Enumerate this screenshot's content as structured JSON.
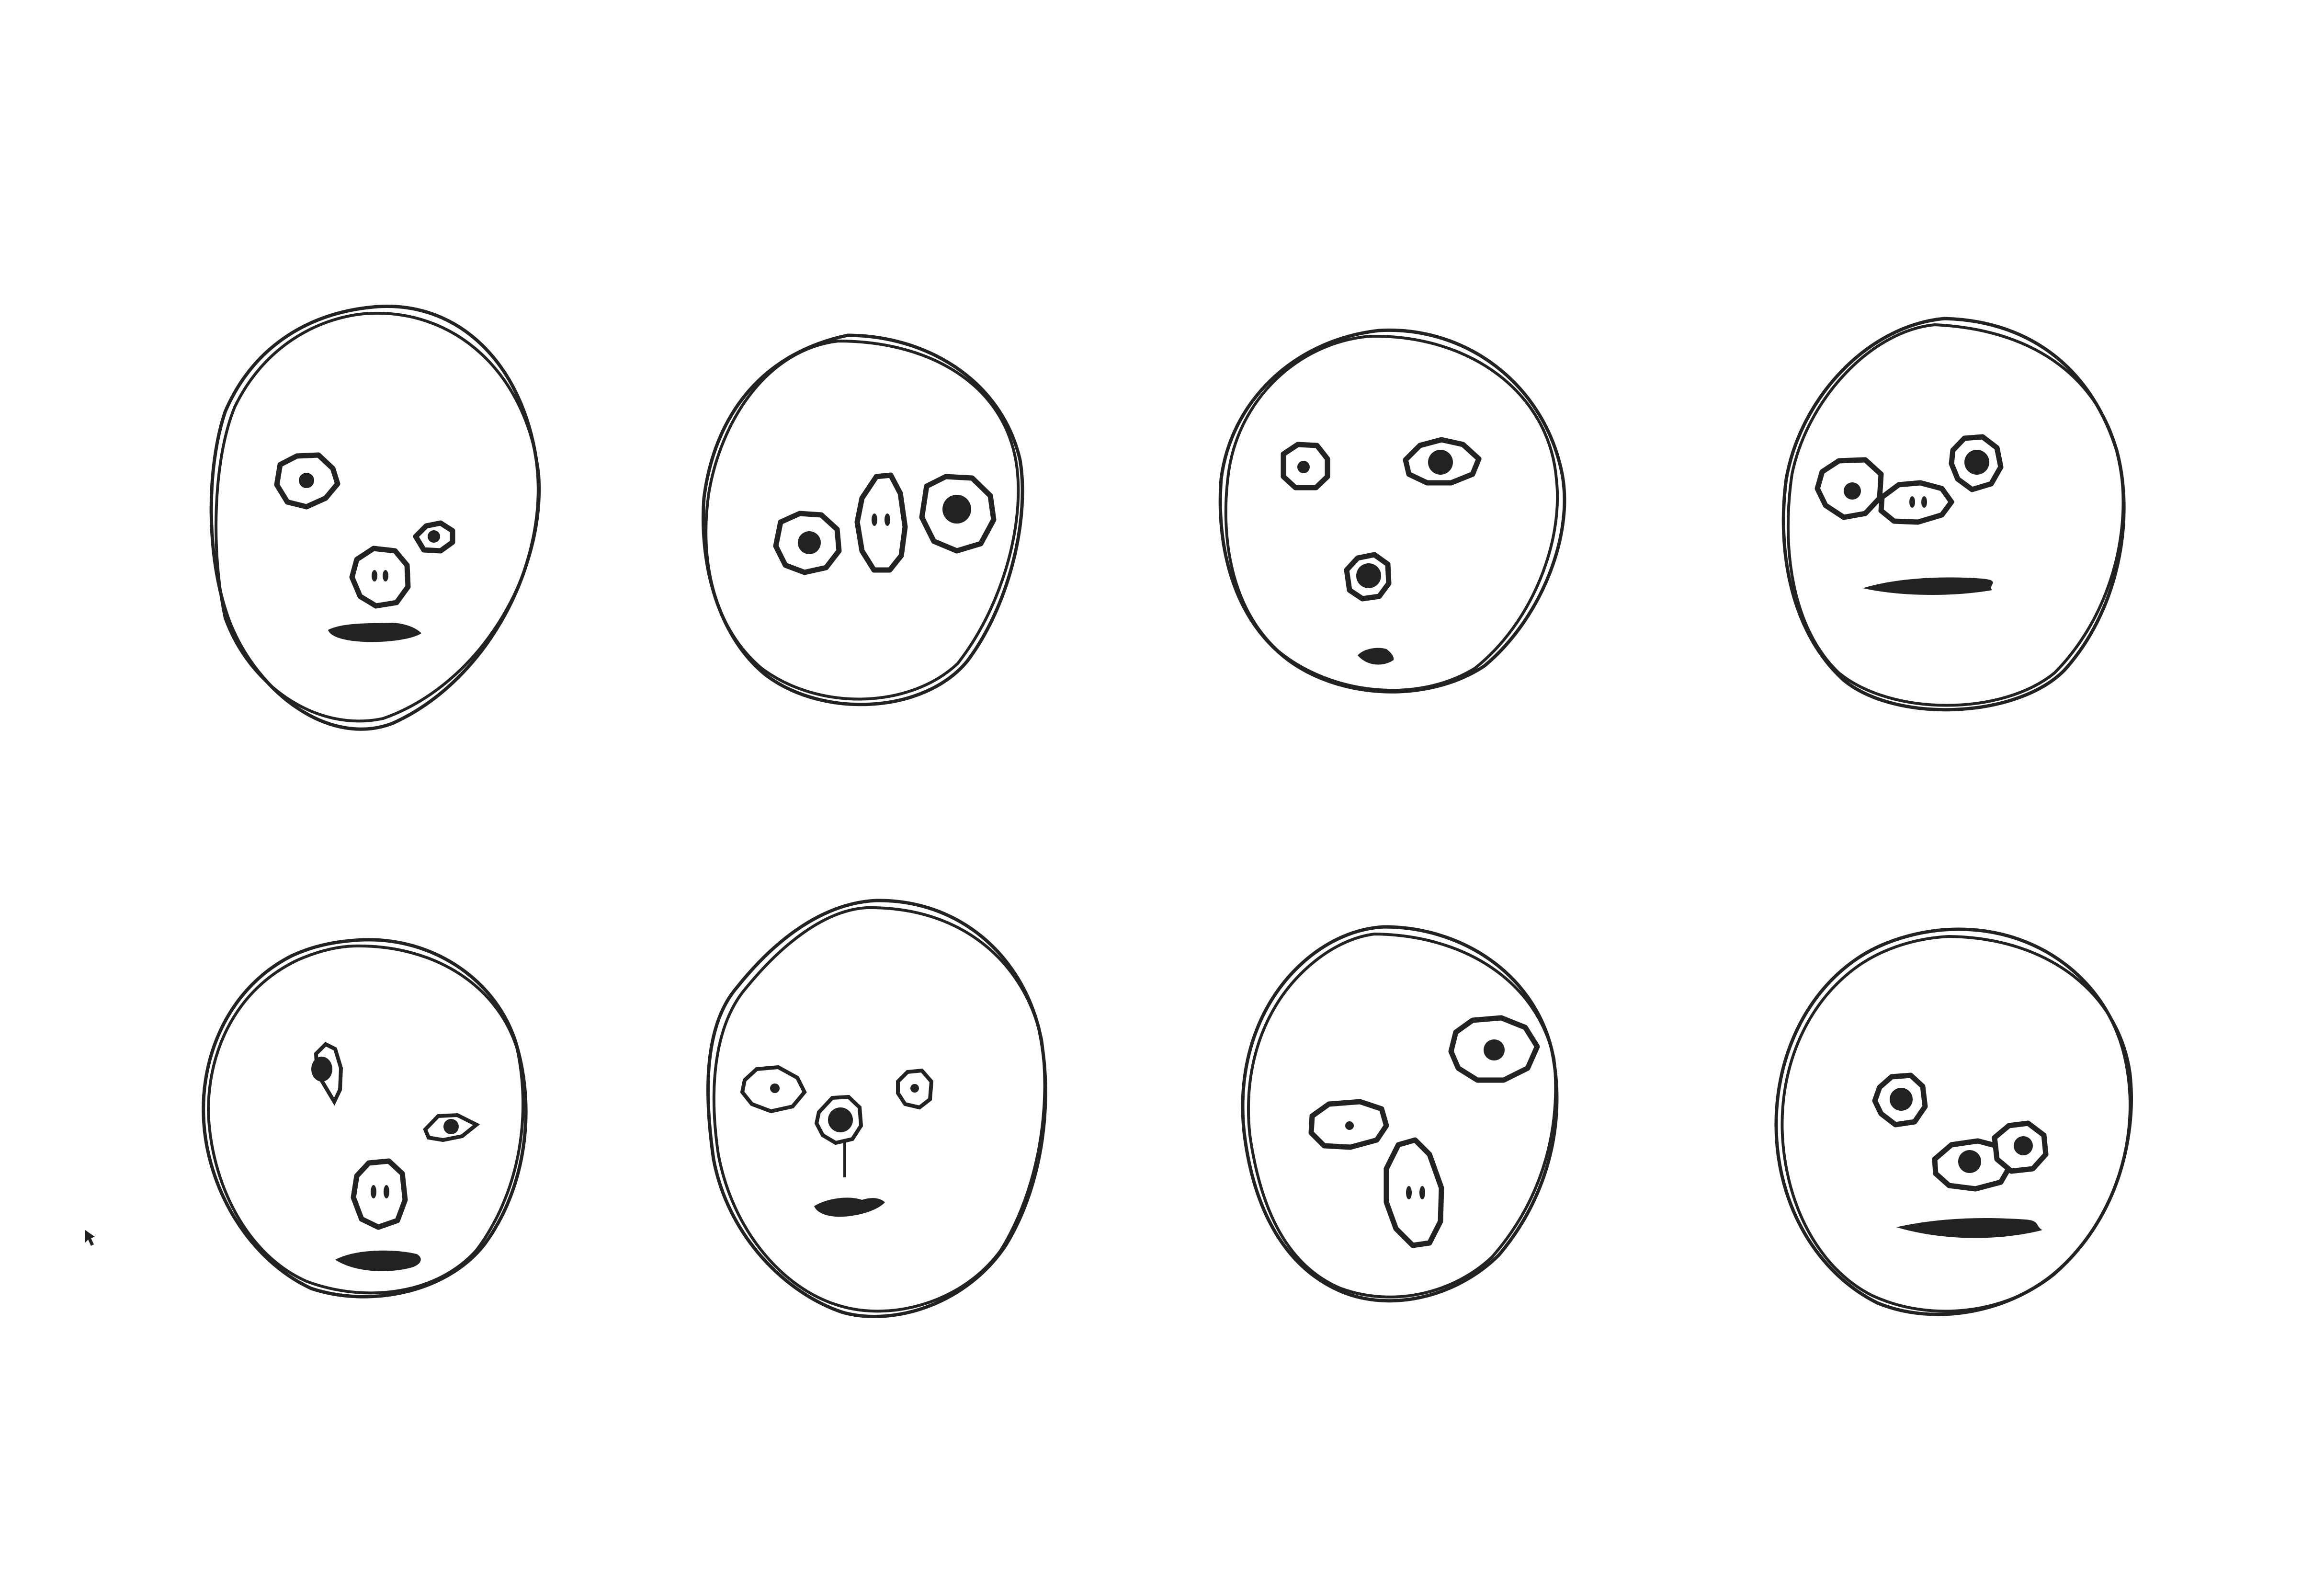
{
  "canvas": {
    "background": "#ffffff",
    "ink": "#222222"
  },
  "cursor": {
    "icon": "mouse-pointer-icon"
  },
  "faces": [
    {
      "id": "face-1",
      "row": 1,
      "column": 1,
      "features": [
        "left-eye",
        "right-eye-small",
        "nose-two-nostrils",
        "mouth-flat"
      ]
    },
    {
      "id": "face-2",
      "row": 1,
      "column": 2,
      "features": [
        "left-eye",
        "center-nose-two-nostrils",
        "right-eye-large"
      ]
    },
    {
      "id": "face-3",
      "row": 1,
      "column": 3,
      "features": [
        "left-eye-small",
        "right-eye",
        "nose-round",
        "mouth-small"
      ]
    },
    {
      "id": "face-4",
      "row": 1,
      "column": 4,
      "features": [
        "left-eye",
        "nose-two-nostrils",
        "right-eye",
        "mouth-wide"
      ]
    },
    {
      "id": "face-5",
      "row": 2,
      "column": 1,
      "features": [
        "left-eye-dark",
        "right-eye-squint",
        "nose-two-nostrils",
        "mouth-flat"
      ]
    },
    {
      "id": "face-6",
      "row": 2,
      "column": 2,
      "features": [
        "left-eye",
        "right-eye-small",
        "nose-round-with-stem",
        "mouth-small"
      ]
    },
    {
      "id": "face-7",
      "row": 2,
      "column": 3,
      "features": [
        "right-eye-large",
        "left-eye-small",
        "nose-oval-two-nostrils"
      ]
    },
    {
      "id": "face-8",
      "row": 2,
      "column": 4,
      "features": [
        "left-eye",
        "nose-eye",
        "right-eye",
        "mouth-wide"
      ]
    }
  ]
}
